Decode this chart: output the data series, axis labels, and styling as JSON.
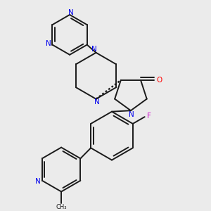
{
  "background_color": "#ebebeb",
  "bond_color": "#1a1a1a",
  "N_color": "#0000ee",
  "O_color": "#ff0000",
  "F_color": "#cc00cc",
  "line_width": 1.4,
  "doffset": 0.013,
  "figsize": [
    3.0,
    3.0
  ],
  "dpi": 100,
  "xlim": [
    0.0,
    1.0
  ],
  "ylim": [
    0.0,
    1.0
  ]
}
